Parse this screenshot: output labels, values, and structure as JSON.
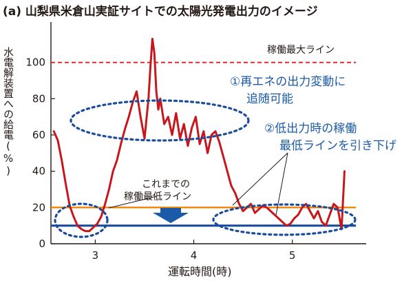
{
  "chart_data": {
    "type": "line",
    "title": "(a) 山梨県米倉山実証サイトでの太陽光発電出力のイメージ",
    "xlabel": "運転時間(時)",
    "ylabel": "水電解装置への給電(%)",
    "xlim": [
      2.55,
      5.75
    ],
    "ylim": [
      0,
      120
    ],
    "xticks": [
      3,
      4,
      5
    ],
    "yticks": [
      0,
      20,
      40,
      60,
      80,
      100
    ],
    "grid": false,
    "series": [
      {
        "name": "",
        "color": "#c8161d",
        "x": [
          2.58,
          2.62,
          2.66,
          2.7,
          2.74,
          2.78,
          2.82,
          2.86,
          2.9,
          2.94,
          2.98,
          3.02,
          3.06,
          3.1,
          3.14,
          3.18,
          3.22,
          3.26,
          3.3,
          3.34,
          3.38,
          3.42,
          3.46,
          3.5,
          3.54,
          3.56,
          3.58,
          3.6,
          3.62,
          3.64,
          3.66,
          3.7,
          3.74,
          3.78,
          3.82,
          3.86,
          3.9,
          3.94,
          3.98,
          4.02,
          4.06,
          4.1,
          4.14,
          4.18,
          4.22,
          4.26,
          4.3,
          4.34,
          4.38,
          4.42,
          4.46,
          4.5,
          4.54,
          4.58,
          4.62,
          4.66,
          4.7,
          4.74,
          4.78,
          4.82,
          4.86,
          4.9,
          4.94,
          4.98,
          5.02,
          5.06,
          5.1,
          5.14,
          5.18,
          5.22,
          5.26,
          5.3,
          5.34,
          5.38,
          5.42,
          5.46,
          5.5,
          5.53
        ],
        "y": [
          62,
          57,
          46,
          33,
          21,
          15,
          10,
          8,
          7,
          7,
          9,
          11,
          15,
          22,
          30,
          40,
          46,
          55,
          63,
          70,
          78,
          84,
          70,
          58,
          80,
          98,
          113,
          105,
          84,
          74,
          80,
          66,
          70,
          60,
          72,
          58,
          66,
          54,
          64,
          70,
          55,
          62,
          50,
          60,
          62,
          56,
          48,
          40,
          32,
          28,
          22,
          18,
          20,
          22,
          17,
          19,
          21,
          20,
          18,
          16,
          14,
          12,
          10,
          11,
          14,
          16,
          20,
          22,
          18,
          14,
          18,
          12,
          10,
          16,
          22,
          20,
          8,
          40
        ]
      }
    ],
    "reference_lines": [
      {
        "label": "稼働最大ライン",
        "y": 100,
        "color": "#d7201f",
        "style": "dashed"
      },
      {
        "label": "これまでの稼働最低ライン",
        "y": 20,
        "color": "#f08300",
        "style": "solid"
      },
      {
        "label": "",
        "y": 10,
        "color": "#1a4b9c",
        "style": "solid"
      }
    ],
    "annotations": [
      {
        "text": "①再エネの出力変動に",
        "color": "#1a5aa8"
      },
      {
        "text": "追随可能",
        "color": "#1a5aa8"
      },
      {
        "text": "②低出力時の稼働",
        "color": "#1a5aa8"
      },
      {
        "text": "最低ラインを引き下げ",
        "color": "#1a5aa8"
      },
      {
        "text": "これまでの",
        "color": "#231815"
      },
      {
        "text": "稼働最低ライン",
        "color": "#231815"
      }
    ]
  }
}
